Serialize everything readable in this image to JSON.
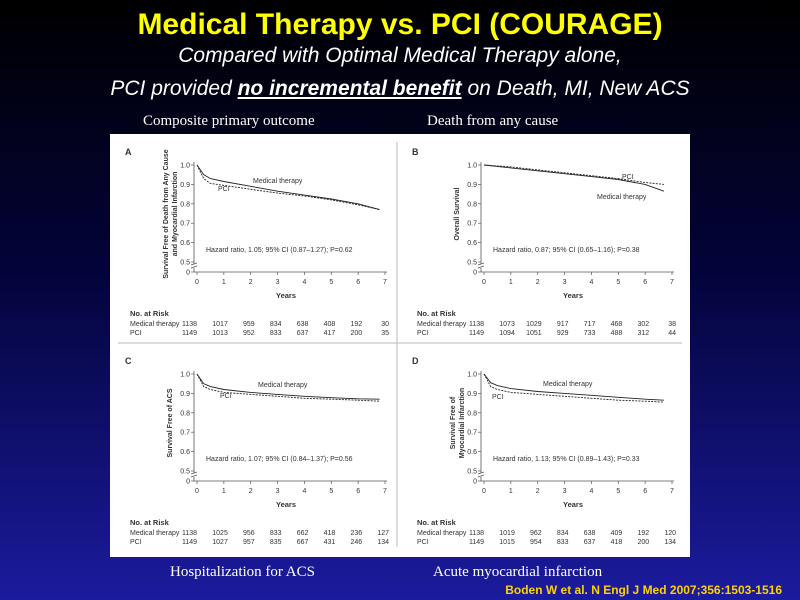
{
  "title": "Medical Therapy vs. PCI (COURAGE)",
  "subtitle_line1": "Compared with Optimal Medical Therapy alone,",
  "subtitle_line2_pre": "PCI provided ",
  "subtitle_line2_emph": "no incremental benefit",
  "subtitle_line2_post": " on Death, MI, New ACS",
  "caption_top_left": "Composite primary  outcome",
  "caption_top_right": "Death from any cause",
  "caption_bottom_left": "Hospitalization  for ACS",
  "caption_bottom_right": "Acute myocardial infarction",
  "citation": "Boden W et al. N Engl J Med 2007;356:1503-1516",
  "colors": {
    "title": "#ffff00",
    "citation": "#ffd200",
    "text": "#ffffff"
  },
  "chart_data": [
    {
      "type": "line",
      "panel": "A",
      "ylabel": "Survival Free of Death from Any Cause and Myocardial Infarction",
      "xlabel": "Years",
      "xlim": [
        0,
        7
      ],
      "ylim": [
        0,
        1.0
      ],
      "x_ticks": [
        "0",
        "1",
        "2",
        "3",
        "4",
        "5",
        "6",
        "7"
      ],
      "y_ticks": [
        "0",
        "0.5",
        "0.6",
        "0.7",
        "0.8",
        "0.9",
        "1.0"
      ],
      "hazard": "Hazard ratio, 1.05; 95% CI (0.87–1.27); P=0.62",
      "series": [
        {
          "name": "Medical therapy",
          "x": [
            0,
            0.25,
            0.5,
            1,
            2,
            3,
            4,
            5,
            6,
            6.8
          ],
          "y": [
            1.0,
            0.95,
            0.93,
            0.915,
            0.89,
            0.865,
            0.845,
            0.825,
            0.8,
            0.77
          ]
        },
        {
          "name": "PCI",
          "x": [
            0,
            0.25,
            0.5,
            1,
            2,
            3,
            4,
            5,
            6,
            6.8
          ],
          "y": [
            1.0,
            0.93,
            0.905,
            0.895,
            0.875,
            0.855,
            0.84,
            0.82,
            0.795,
            0.77
          ]
        }
      ],
      "risk_header": "No. at Risk",
      "risk": [
        {
          "label": "Medical therapy",
          "values": [
            "1138",
            "1017",
            "959",
            "834",
            "638",
            "408",
            "192",
            "30"
          ]
        },
        {
          "label": "PCI",
          "values": [
            "1149",
            "1013",
            "952",
            "833",
            "637",
            "417",
            "200",
            "35"
          ]
        }
      ]
    },
    {
      "type": "line",
      "panel": "B",
      "ylabel": "Overall Survival",
      "xlabel": "Years",
      "xlim": [
        0,
        7
      ],
      "ylim": [
        0,
        1.0
      ],
      "x_ticks": [
        "0",
        "1",
        "2",
        "3",
        "4",
        "5",
        "6",
        "7"
      ],
      "y_ticks": [
        "0",
        "0.5",
        "0.6",
        "0.7",
        "0.8",
        "0.9",
        "1.0"
      ],
      "hazard": "Hazard ratio, 0.87; 95% CI (0.65–1.16); P=0.38",
      "series": [
        {
          "name": "PCI",
          "x": [
            0,
            1,
            2,
            3,
            4,
            5,
            6,
            6.7
          ],
          "y": [
            1.0,
            0.99,
            0.975,
            0.96,
            0.945,
            0.93,
            0.91,
            0.9
          ]
        },
        {
          "name": "Medical therapy",
          "x": [
            0,
            1,
            2,
            3,
            4,
            5,
            6,
            6.7
          ],
          "y": [
            1.0,
            0.985,
            0.97,
            0.955,
            0.94,
            0.925,
            0.9,
            0.865
          ]
        }
      ],
      "risk_header": "No. at Risk",
      "risk": [
        {
          "label": "Medical therapy",
          "values": [
            "1138",
            "1073",
            "1029",
            "917",
            "717",
            "468",
            "302",
            "38"
          ]
        },
        {
          "label": "PCI",
          "values": [
            "1149",
            "1094",
            "1051",
            "929",
            "733",
            "488",
            "312",
            "44"
          ]
        }
      ]
    },
    {
      "type": "line",
      "panel": "C",
      "ylabel": "Survival Free of ACS",
      "xlabel": "Years",
      "xlim": [
        0,
        7
      ],
      "ylim": [
        0,
        1.0
      ],
      "x_ticks": [
        "0",
        "1",
        "2",
        "3",
        "4",
        "5",
        "6",
        "7"
      ],
      "y_ticks": [
        "0",
        "0.5",
        "0.6",
        "0.7",
        "0.8",
        "0.9",
        "1.0"
      ],
      "hazard": "Hazard ratio, 1.07; 95% CI (0.84–1.37); P=0.56",
      "series": [
        {
          "name": "Medical therapy",
          "x": [
            0,
            0.25,
            0.5,
            1,
            2,
            3,
            4,
            5,
            6,
            6.8
          ],
          "y": [
            1.0,
            0.95,
            0.935,
            0.92,
            0.905,
            0.895,
            0.885,
            0.878,
            0.872,
            0.87
          ]
        },
        {
          "name": "PCI",
          "x": [
            0,
            0.25,
            0.5,
            1,
            2,
            3,
            4,
            5,
            6,
            6.8
          ],
          "y": [
            1.0,
            0.935,
            0.92,
            0.905,
            0.895,
            0.885,
            0.875,
            0.87,
            0.865,
            0.86
          ]
        }
      ],
      "risk_header": "No. at Risk",
      "risk": [
        {
          "label": "Medical therapy",
          "values": [
            "1138",
            "1025",
            "956",
            "833",
            "662",
            "418",
            "236",
            "127"
          ]
        },
        {
          "label": "PCI",
          "values": [
            "1149",
            "1027",
            "957",
            "835",
            "667",
            "431",
            "246",
            "134"
          ]
        }
      ]
    },
    {
      "type": "line",
      "panel": "D",
      "ylabel": "Survival Free of Myocardial Infarction",
      "xlabel": "Years",
      "xlim": [
        0,
        7
      ],
      "ylim": [
        0,
        1.0
      ],
      "x_ticks": [
        "0",
        "1",
        "2",
        "3",
        "4",
        "5",
        "6",
        "7"
      ],
      "y_ticks": [
        "0",
        "0.5",
        "0.6",
        "0.7",
        "0.8",
        "0.9",
        "1.0"
      ],
      "hazard": "Hazard ratio, 1.13; 95% CI (0.89–1.43); P=0.33",
      "series": [
        {
          "name": "Medical therapy",
          "x": [
            0,
            0.25,
            0.5,
            1,
            2,
            3,
            4,
            5,
            6,
            6.7
          ],
          "y": [
            1.0,
            0.955,
            0.94,
            0.925,
            0.91,
            0.9,
            0.89,
            0.88,
            0.87,
            0.865
          ]
        },
        {
          "name": "PCI",
          "x": [
            0,
            0.25,
            0.5,
            1,
            2,
            3,
            4,
            5,
            6,
            6.7
          ],
          "y": [
            1.0,
            0.935,
            0.92,
            0.905,
            0.895,
            0.885,
            0.875,
            0.865,
            0.86,
            0.855
          ]
        }
      ],
      "risk_header": "No. at Risk",
      "risk": [
        {
          "label": "Medical therapy",
          "values": [
            "1138",
            "1019",
            "962",
            "834",
            "638",
            "409",
            "192",
            "120"
          ]
        },
        {
          "label": "PCI",
          "values": [
            "1149",
            "1015",
            "954",
            "833",
            "637",
            "418",
            "200",
            "134"
          ]
        }
      ]
    }
  ]
}
